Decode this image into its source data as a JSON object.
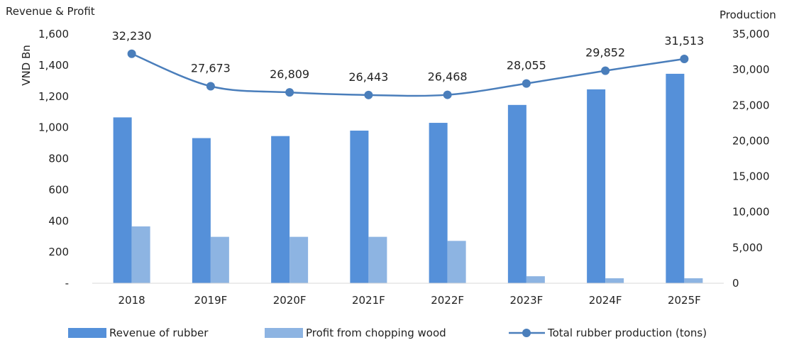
{
  "chart_data": {
    "type": "bar+line",
    "categories": [
      "2018",
      "2019F",
      "2020F",
      "2021F",
      "2022F",
      "2023F",
      "2024F",
      "2025F"
    ],
    "left_axis_title": "Revenue & Profit",
    "left_axis_label": "VND Bn",
    "right_axis_title": "Production",
    "left_ticks": [
      "-",
      "200",
      "400",
      "600",
      "800",
      "1,000",
      "1,200",
      "1,400",
      "1,600"
    ],
    "right_ticks": [
      "0",
      "5,000",
      "10,000",
      "15,000",
      "20,000",
      "25,000",
      "30,000",
      "35,000"
    ],
    "ylim_left": [
      0,
      1600
    ],
    "ylim_right": [
      0,
      35000
    ],
    "grid": false,
    "legend_position": "bottom",
    "series": [
      {
        "name": "Revenue of rubber",
        "type": "bar",
        "axis": "left",
        "color": "#5590D9",
        "values": [
          1065,
          932,
          945,
          980,
          1030,
          1145,
          1245,
          1345
        ]
      },
      {
        "name": "Profit from chopping wood",
        "type": "bar",
        "axis": "left",
        "color": "#8DB4E2",
        "values": [
          365,
          298,
          298,
          298,
          272,
          45,
          32,
          32
        ]
      },
      {
        "name": "Total rubber production (tons)",
        "type": "line",
        "axis": "right",
        "color": "#4A7EBB",
        "values": [
          32230,
          27673,
          26809,
          26443,
          26468,
          28055,
          29852,
          31513
        ],
        "labels": [
          "32,230",
          "27,673",
          "26,809",
          "26,443",
          "26,468",
          "28,055",
          "29,852",
          "31,513"
        ]
      }
    ]
  }
}
